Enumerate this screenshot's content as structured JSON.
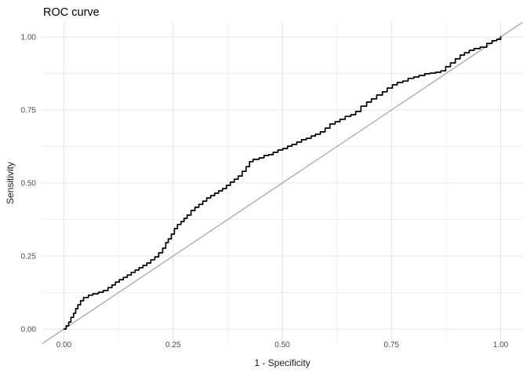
{
  "chart_data": {
    "type": "line",
    "title": "ROC curve",
    "xlabel": "1 - Specificity",
    "ylabel": "Sensitivity",
    "xlim": [
      0,
      1
    ],
    "ylim": [
      0,
      1
    ],
    "x_tick_values": [
      0,
      0.25,
      0.5,
      0.75,
      1
    ],
    "x_tick_labels": [
      "0.00",
      "0.25",
      "0.50",
      "0.75",
      "1.00"
    ],
    "y_tick_values": [
      0,
      0.25,
      0.5,
      0.75,
      1
    ],
    "y_tick_labels": [
      "0.00",
      "0.25",
      "0.50",
      "0.75",
      "1.00"
    ],
    "minor_tick_values": [
      0.125,
      0.375,
      0.625,
      0.875
    ],
    "grid": "major and minor gridlines, no panel border, white background",
    "legend": "none",
    "colors": {
      "curve": "#000000",
      "reference_line": "#a8a8a8",
      "grid_major": "#e4e4e4",
      "grid_minor": "#efefef",
      "tick_text": "#4d4d4d",
      "title_text": "#000000"
    },
    "reference_line": {
      "name": "chance-diagonal",
      "slope": 1,
      "intercept": 0
    },
    "series": [
      {
        "name": "ROC curve (empirical, step)",
        "points": [
          [
            0,
            0
          ],
          [
            0.005,
            0.011
          ],
          [
            0.011,
            0.024
          ],
          [
            0.016,
            0.04
          ],
          [
            0.022,
            0.054
          ],
          [
            0.027,
            0.07
          ],
          [
            0.032,
            0.083
          ],
          [
            0.038,
            0.097
          ],
          [
            0.045,
            0.108
          ],
          [
            0.056,
            0.116
          ],
          [
            0.066,
            0.121
          ],
          [
            0.079,
            0.126
          ],
          [
            0.09,
            0.132
          ],
          [
            0.101,
            0.142
          ],
          [
            0.11,
            0.151
          ],
          [
            0.118,
            0.161
          ],
          [
            0.127,
            0.169
          ],
          [
            0.136,
            0.177
          ],
          [
            0.145,
            0.185
          ],
          [
            0.154,
            0.194
          ],
          [
            0.163,
            0.202
          ],
          [
            0.172,
            0.21
          ],
          [
            0.181,
            0.218
          ],
          [
            0.19,
            0.226
          ],
          [
            0.199,
            0.237
          ],
          [
            0.208,
            0.247
          ],
          [
            0.217,
            0.261
          ],
          [
            0.226,
            0.277
          ],
          [
            0.233,
            0.296
          ],
          [
            0.239,
            0.309
          ],
          [
            0.246,
            0.325
          ],
          [
            0.253,
            0.344
          ],
          [
            0.26,
            0.358
          ],
          [
            0.268,
            0.368
          ],
          [
            0.275,
            0.379
          ],
          [
            0.282,
            0.39
          ],
          [
            0.291,
            0.406
          ],
          [
            0.3,
            0.417
          ],
          [
            0.309,
            0.427
          ],
          [
            0.318,
            0.438
          ],
          [
            0.327,
            0.449
          ],
          [
            0.336,
            0.457
          ],
          [
            0.345,
            0.465
          ],
          [
            0.354,
            0.473
          ],
          [
            0.363,
            0.481
          ],
          [
            0.372,
            0.492
          ],
          [
            0.381,
            0.503
          ],
          [
            0.39,
            0.513
          ],
          [
            0.399,
            0.524
          ],
          [
            0.408,
            0.54
          ],
          [
            0.417,
            0.556
          ],
          [
            0.425,
            0.573
          ],
          [
            0.433,
            0.581
          ],
          [
            0.447,
            0.586
          ],
          [
            0.458,
            0.594
          ],
          [
            0.469,
            0.597
          ],
          [
            0.479,
            0.605
          ],
          [
            0.49,
            0.613
          ],
          [
            0.501,
            0.618
          ],
          [
            0.512,
            0.626
          ],
          [
            0.522,
            0.632
          ],
          [
            0.533,
            0.64
          ],
          [
            0.544,
            0.648
          ],
          [
            0.555,
            0.653
          ],
          [
            0.566,
            0.661
          ],
          [
            0.576,
            0.667
          ],
          [
            0.587,
            0.675
          ],
          [
            0.598,
            0.688
          ],
          [
            0.609,
            0.702
          ],
          [
            0.621,
            0.71
          ],
          [
            0.632,
            0.718
          ],
          [
            0.644,
            0.728
          ],
          [
            0.657,
            0.734
          ],
          [
            0.668,
            0.745
          ],
          [
            0.68,
            0.763
          ],
          [
            0.693,
            0.777
          ],
          [
            0.704,
            0.788
          ],
          [
            0.716,
            0.801
          ],
          [
            0.729,
            0.812
          ],
          [
            0.74,
            0.825
          ],
          [
            0.752,
            0.836
          ],
          [
            0.763,
            0.844
          ],
          [
            0.776,
            0.849
          ],
          [
            0.788,
            0.858
          ],
          [
            0.801,
            0.863
          ],
          [
            0.813,
            0.868
          ],
          [
            0.826,
            0.874
          ],
          [
            0.838,
            0.876
          ],
          [
            0.851,
            0.879
          ],
          [
            0.863,
            0.884
          ],
          [
            0.874,
            0.898
          ],
          [
            0.885,
            0.911
          ],
          [
            0.896,
            0.925
          ],
          [
            0.907,
            0.938
          ],
          [
            0.917,
            0.946
          ],
          [
            0.928,
            0.954
          ],
          [
            0.939,
            0.96
          ],
          [
            0.953,
            0.965
          ],
          [
            0.968,
            0.978
          ],
          [
            0.98,
            0.987
          ],
          [
            0.991,
            0.992
          ],
          [
            1,
            1
          ]
        ]
      }
    ]
  }
}
